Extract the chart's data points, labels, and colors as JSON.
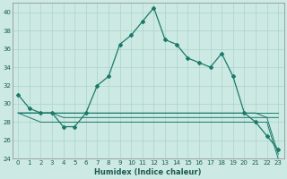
{
  "xlabel": "Humidex (Indice chaleur)",
  "x": [
    0,
    1,
    2,
    3,
    4,
    5,
    6,
    7,
    8,
    9,
    10,
    11,
    12,
    13,
    14,
    15,
    16,
    17,
    18,
    19,
    20,
    21,
    22,
    23
  ],
  "main_line": [
    31,
    29.5,
    29,
    29,
    27.5,
    27.5,
    29,
    32,
    33,
    36.5,
    37.5,
    39,
    40.5,
    37,
    36.5,
    35,
    34.5,
    34,
    35.5,
    33,
    29,
    28,
    26.5,
    25
  ],
  "line2": [
    29,
    29,
    29,
    29,
    29,
    29,
    29,
    29,
    29,
    29,
    29,
    29,
    29,
    29,
    29,
    29,
    29,
    29,
    29,
    29,
    29,
    29,
    29,
    29
  ],
  "line3": [
    29,
    29,
    29,
    29,
    28.5,
    28.5,
    28.5,
    28.5,
    28.5,
    28.5,
    28.5,
    28.5,
    28.5,
    28.5,
    28.5,
    28.5,
    28.5,
    28.5,
    28.5,
    28.5,
    28.5,
    28.5,
    28.5,
    28.5
  ],
  "line4": [
    29,
    29,
    29,
    29,
    29,
    29,
    29,
    29,
    29,
    29,
    29,
    29,
    29,
    29,
    29,
    29,
    29,
    29,
    29,
    29,
    29,
    29,
    28.5,
    24.5
  ],
  "line5": [
    29,
    28.5,
    28,
    28,
    28,
    28,
    28,
    28,
    28,
    28,
    28,
    28,
    28,
    28,
    28,
    28,
    28,
    28,
    28,
    28,
    28,
    28,
    28,
    24
  ],
  "line_color": "#1a7a6a",
  "bg_color": "#cce9e3",
  "grid_color": "#aad4cc",
  "ylim": [
    24,
    41
  ],
  "yticks": [
    24,
    26,
    28,
    30,
    32,
    34,
    36,
    38,
    40
  ],
  "xlim": [
    -0.5,
    23.5
  ]
}
